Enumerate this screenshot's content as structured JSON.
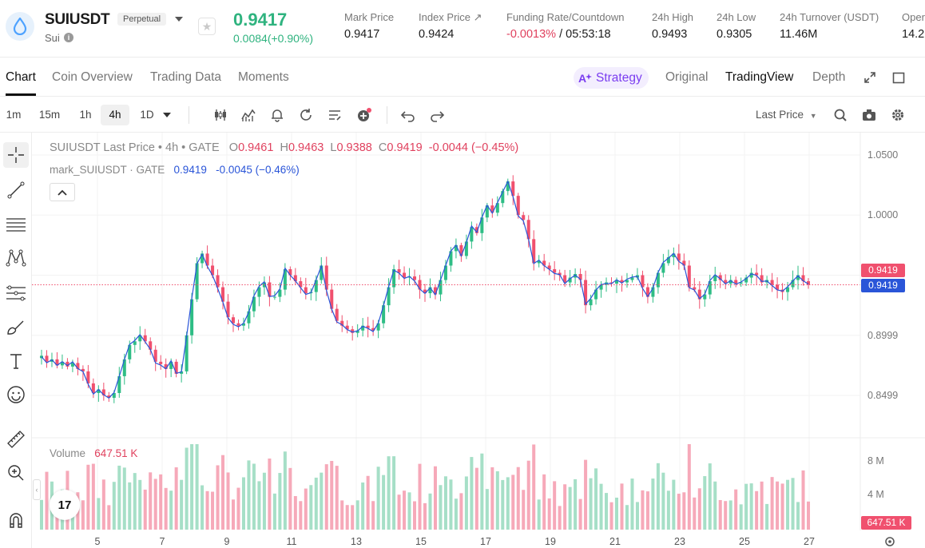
{
  "header": {
    "symbol": "SUIUSDT",
    "contract_type": "Perpetual",
    "base_name": "Sui",
    "info_icon": "i",
    "last_price": "0.9417",
    "price_change": "0.0084(+0.90%)",
    "stats": [
      {
        "label": "Mark Price",
        "value": "0.9417"
      },
      {
        "label": "Index Price ↗",
        "value": "0.9424"
      },
      {
        "label": "Funding Rate/Countdown",
        "value_neg": "-0.0013%",
        "value": "/ 05:53:18"
      },
      {
        "label": "24h High",
        "value": "0.9493"
      },
      {
        "label": "24h Low",
        "value": "0.9305"
      },
      {
        "label": "24h Turnover (USDT)",
        "value": "11.46M"
      },
      {
        "label": "Oper",
        "value": "14.2"
      }
    ]
  },
  "tabs": {
    "items": [
      "Chart",
      "Coin Overview",
      "Trading Data",
      "Moments"
    ],
    "strategy_label": "Strategy",
    "views": [
      "Original",
      "TradingView",
      "Depth"
    ]
  },
  "toolbar": {
    "intervals": [
      "1m",
      "15m",
      "1h",
      "4h",
      "1D"
    ],
    "price_type": "Last Price"
  },
  "chart": {
    "title_symbol": "SUIUSDT Last Price • 4h • GATE",
    "ohlc": {
      "o_label": "O",
      "o": "0.9461",
      "h_label": "H",
      "h": "0.9463",
      "l_label": "L",
      "l": "0.9388",
      "c_label": "C",
      "c": "0.9419",
      "change": "-0.0044 (−0.45%)"
    },
    "mark_label": "mark_SUIUSDT · GATE",
    "mark_value": "0.9419",
    "mark_change": "-0.0045 (−0.46%)",
    "volume_label": "Volume",
    "volume_value": "647.51 K",
    "tv_logo": "17",
    "price_tag_last": "0.9419",
    "price_tag_mark": "0.9419",
    "volume_tag": "647.51 K",
    "colors": {
      "up": "#2ebd85",
      "down": "#f0506e",
      "vol_up": "#a6dfc7",
      "vol_down": "#f6a9b9",
      "mark_line": "#2a55d8"
    }
  },
  "chart_data": {
    "type": "candlestick",
    "title": "SUIUSDT Last Price • 4h • GATE",
    "y_ticks": [
      "1.0500",
      "1.0000",
      "0.8999",
      "0.8499"
    ],
    "volume_ticks": [
      "8 M",
      "4 M"
    ],
    "x_ticks": [
      "5",
      "7",
      "9",
      "11",
      "13",
      "15",
      "17",
      "19",
      "21",
      "23",
      "25",
      "27"
    ],
    "ylim": [
      0.82,
      1.06
    ],
    "vol_max": 10,
    "closes": [
      0.883,
      0.878,
      0.88,
      0.875,
      0.878,
      0.874,
      0.877,
      0.872,
      0.87,
      0.86,
      0.852,
      0.855,
      0.85,
      0.848,
      0.852,
      0.866,
      0.88,
      0.892,
      0.895,
      0.9,
      0.895,
      0.888,
      0.878,
      0.876,
      0.872,
      0.878,
      0.868,
      0.87,
      0.9,
      0.93,
      0.96,
      0.968,
      0.958,
      0.95,
      0.94,
      0.928,
      0.915,
      0.91,
      0.908,
      0.91,
      0.92,
      0.932,
      0.94,
      0.944,
      0.932,
      0.932,
      0.938,
      0.955,
      0.95,
      0.945,
      0.94,
      0.935,
      0.936,
      0.946,
      0.958,
      0.938,
      0.922,
      0.912,
      0.908,
      0.905,
      0.902,
      0.904,
      0.908,
      0.906,
      0.904,
      0.91,
      0.925,
      0.94,
      0.955,
      0.952,
      0.948,
      0.949,
      0.946,
      0.938,
      0.935,
      0.94,
      0.934,
      0.946,
      0.958,
      0.97,
      0.975,
      0.966,
      0.978,
      0.99,
      0.985,
      0.998,
      1.008,
      1.002,
      1.01,
      1.02,
      1.028,
      1.016,
      1.0,
      0.996,
      0.98,
      0.96,
      0.962,
      0.958,
      0.955,
      0.952,
      0.95,
      0.944,
      0.948,
      0.951,
      0.946,
      0.925,
      0.93,
      0.938,
      0.942,
      0.944,
      0.943,
      0.946,
      0.944,
      0.946,
      0.948,
      0.95,
      0.94,
      0.932,
      0.94,
      0.952,
      0.96,
      0.965,
      0.968,
      0.962,
      0.958,
      0.94,
      0.938,
      0.93,
      0.934,
      0.945,
      0.95,
      0.946,
      0.943,
      0.946,
      0.943,
      0.944,
      0.948,
      0.952,
      0.95,
      0.944,
      0.946,
      0.942,
      0.938,
      0.936,
      0.94,
      0.946,
      0.95,
      0.945,
      0.942
    ]
  }
}
